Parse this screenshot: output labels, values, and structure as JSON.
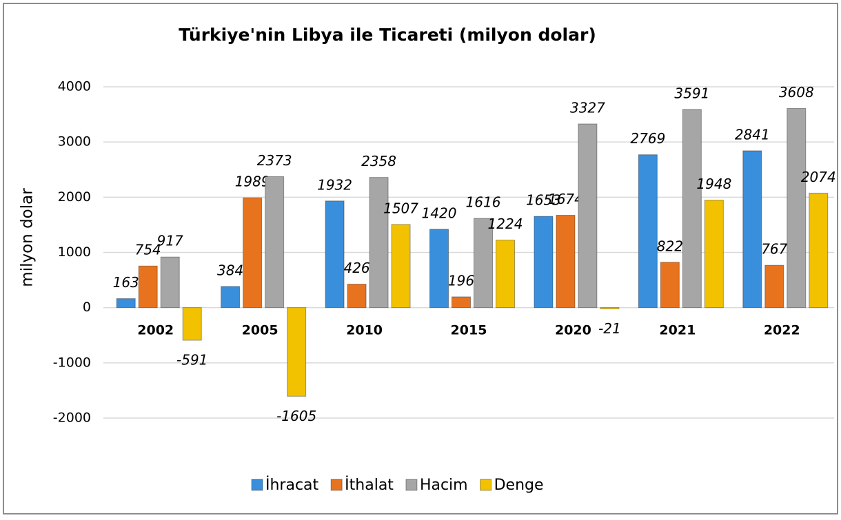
{
  "chart_data": {
    "type": "bar",
    "title": "Türkiye'nin Libya ile Ticareti (milyon dolar)",
    "y_label": "milyon dolar",
    "categories": [
      "2002",
      "2005",
      "2010",
      "2015",
      "2020",
      "2021",
      "2022"
    ],
    "series": [
      {
        "name": "İhracat",
        "color": "#3a8fdc",
        "values": [
          163,
          384,
          1932,
          1420,
          1653,
          2769,
          2841
        ]
      },
      {
        "name": "İthalat",
        "color": "#e8731f",
        "values": [
          754,
          1989,
          426,
          196,
          1674,
          822,
          767
        ]
      },
      {
        "name": "Hacim",
        "color": "#a6a6a6",
        "values": [
          917,
          2373,
          2358,
          1616,
          3327,
          3591,
          3608
        ]
      },
      {
        "name": "Denge",
        "color": "#f2c200",
        "values": [
          -591,
          -1605,
          1507,
          1224,
          -21,
          1948,
          2074
        ]
      }
    ],
    "ylim": [
      -2000,
      4000
    ],
    "yticks": [
      -2000,
      -1000,
      0,
      1000,
      2000,
      3000,
      4000
    ],
    "grid": true,
    "legend": "bottom"
  }
}
